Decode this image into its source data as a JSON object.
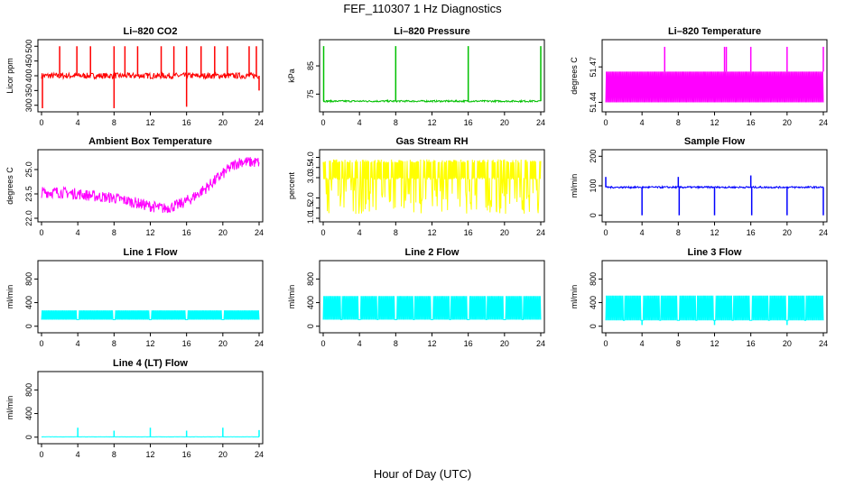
{
  "page": {
    "title": "FEF_110307  1 Hz Diagnostics",
    "xlabel": "Hour of Day (UTC)"
  },
  "chart_data": [
    {
      "type": "line",
      "title": "Li–820 CO2",
      "ylabel": "Licor ppm",
      "xlim": [
        0,
        24
      ],
      "ylim": [
        290,
        510
      ],
      "xticks": [
        "0",
        "4",
        "8",
        "12",
        "16",
        "20",
        "24"
      ],
      "yticks": [
        "300",
        "350",
        "400",
        "450",
        "500"
      ],
      "color": "#ff0000",
      "baseline": 400,
      "noise": 10,
      "style": "spiky",
      "spikes_up": [
        [
          2,
          500
        ],
        [
          3.9,
          500
        ],
        [
          5.4,
          500
        ],
        [
          8,
          500
        ],
        [
          9.2,
          500
        ],
        [
          10.6,
          500
        ],
        [
          13.2,
          500
        ],
        [
          14.6,
          500
        ],
        [
          16,
          500
        ],
        [
          17.6,
          500
        ],
        [
          19.1,
          500
        ],
        [
          20.5,
          500
        ],
        [
          22.9,
          500
        ],
        [
          23.7,
          500
        ]
      ],
      "spikes_down": [
        [
          0.1,
          290
        ],
        [
          8,
          290
        ],
        [
          16,
          295
        ],
        [
          24,
          350
        ]
      ]
    },
    {
      "type": "line",
      "title": "Li–820 Pressure",
      "ylabel": "kPa",
      "xlim": [
        0,
        24
      ],
      "ylim": [
        70,
        93
      ],
      "xticks": [
        "0",
        "4",
        "8",
        "12",
        "16",
        "20",
        "24"
      ],
      "yticks": [
        "75",
        "85"
      ],
      "color": "#00c000",
      "baseline": 72.5,
      "noise": 0.3,
      "style": "flat",
      "spikes_up": [
        [
          0.05,
          92
        ],
        [
          8,
          92
        ],
        [
          16,
          92
        ],
        [
          24,
          92
        ]
      ],
      "spikes_down": []
    },
    {
      "type": "line",
      "title": "Li–820 Temperature",
      "ylabel": "degrees C",
      "xlim": [
        0,
        24
      ],
      "ylim": [
        51.435,
        51.49
      ],
      "xticks": [
        "0",
        "4",
        "8",
        "12",
        "16",
        "20",
        "24"
      ],
      "yticks": [
        "51.44",
        "51.47"
      ],
      "color": "#ff00ff",
      "band": [
        51.44,
        51.466
      ],
      "style": "band",
      "spikes_up": [
        [
          6.5,
          51.487
        ],
        [
          13.1,
          51.487
        ],
        [
          13.3,
          51.487
        ],
        [
          16,
          51.487
        ],
        [
          20,
          51.487
        ],
        [
          24,
          51.487
        ]
      ],
      "spikes_down": []
    },
    {
      "type": "line",
      "title": "Ambient Box Temperature",
      "ylabel": "degrees C",
      "xlim": [
        0,
        24
      ],
      "ylim": [
        22,
        26
      ],
      "xticks": [
        "0",
        "4",
        "8",
        "12",
        "16",
        "20",
        "24"
      ],
      "yticks": [
        "22.0",
        "23.5",
        "25.0"
      ],
      "color": "#ff00ff",
      "style": "curve",
      "noise": 0.35,
      "curve": [
        [
          0,
          23.6
        ],
        [
          2,
          23.6
        ],
        [
          4,
          23.5
        ],
        [
          6,
          23.35
        ],
        [
          8,
          23.25
        ],
        [
          10,
          23.0
        ],
        [
          12,
          22.75
        ],
        [
          13.5,
          22.6
        ],
        [
          15,
          22.8
        ],
        [
          16.5,
          23.2
        ],
        [
          18,
          23.8
        ],
        [
          19.5,
          24.5
        ],
        [
          21,
          25.2
        ],
        [
          22,
          25.5
        ],
        [
          23,
          25.45
        ],
        [
          24,
          25.45
        ]
      ],
      "spikes_up": [],
      "spikes_down": []
    },
    {
      "type": "line",
      "title": "Gas Stream RH",
      "ylabel": "percent",
      "xlim": [
        0,
        24
      ],
      "ylim": [
        1.0,
        4.2
      ],
      "xticks": [
        "0",
        "4",
        "8",
        "12",
        "16",
        "20",
        "24"
      ],
      "yticks": [
        "1.0",
        "1.5",
        "2.0",
        "3.0",
        "3.5",
        "4.0"
      ],
      "color": "#ffff00",
      "band": [
        2.9,
        3.9
      ],
      "low": 1.2,
      "style": "downspikes",
      "spikes_up": [],
      "spikes_down": []
    },
    {
      "type": "line",
      "title": "Sample Flow",
      "ylabel": "ml/min",
      "xlim": [
        0,
        24
      ],
      "ylim": [
        -10,
        210
      ],
      "xticks": [
        "0",
        "4",
        "8",
        "12",
        "16",
        "20",
        "24"
      ],
      "yticks": [
        "0",
        "100",
        "200"
      ],
      "color": "#0000ff",
      "baseline": 95,
      "noise": 3,
      "style": "flat",
      "spikes_up": [
        [
          0,
          130
        ],
        [
          8,
          130
        ],
        [
          16,
          135
        ]
      ],
      "spikes_down": [
        [
          4,
          0
        ],
        [
          8.1,
          0
        ],
        [
          12,
          0
        ],
        [
          16.1,
          0
        ],
        [
          20,
          0
        ],
        [
          24,
          0
        ]
      ]
    },
    {
      "type": "line",
      "title": "Line 1 Flow",
      "ylabel": "ml/min",
      "xlim": [
        0,
        24
      ],
      "ylim": [
        -50,
        1050
      ],
      "xticks": [
        "0",
        "4",
        "8",
        "12",
        "16",
        "20",
        "24"
      ],
      "yticks": [
        "0",
        "400",
        "800"
      ],
      "color": "#00ffff",
      "band": [
        110,
        270
      ],
      "style": "band",
      "gaps": [
        4,
        8,
        12,
        16,
        20
      ],
      "spikes_up": [],
      "spikes_down": []
    },
    {
      "type": "line",
      "title": "Line 2 Flow",
      "ylabel": "ml/min",
      "xlim": [
        0,
        24
      ],
      "ylim": [
        -50,
        1050
      ],
      "xticks": [
        "0",
        "4",
        "8",
        "12",
        "16",
        "20",
        "24"
      ],
      "yticks": [
        "0",
        "400",
        "800"
      ],
      "color": "#00ffff",
      "band": [
        110,
        510
      ],
      "style": "band",
      "gaps": [
        2,
        4,
        6,
        8,
        10,
        12,
        14,
        16,
        18,
        20,
        22
      ],
      "spikes_up": [],
      "spikes_down": []
    },
    {
      "type": "line",
      "title": "Line 3 Flow",
      "ylabel": "ml/min",
      "xlim": [
        0,
        24
      ],
      "ylim": [
        -50,
        1050
      ],
      "xticks": [
        "0",
        "4",
        "8",
        "12",
        "16",
        "20",
        "24"
      ],
      "yticks": [
        "0",
        "400",
        "800"
      ],
      "color": "#00ffff",
      "band": [
        100,
        520
      ],
      "style": "band",
      "gaps": [
        2,
        4,
        6,
        8,
        10,
        12,
        14,
        16,
        18,
        20,
        22
      ],
      "spikes_up": [],
      "spikes_down": [
        [
          4,
          20
        ],
        [
          12,
          20
        ],
        [
          20,
          20
        ]
      ]
    },
    {
      "type": "line",
      "title": "Line 4 (LT) Flow",
      "ylabel": "ml/min",
      "xlim": [
        0,
        24
      ],
      "ylim": [
        -50,
        1050
      ],
      "xticks": [
        "0",
        "4",
        "8",
        "12",
        "16",
        "20",
        "24"
      ],
      "yticks": [
        "0",
        "400",
        "800"
      ],
      "color": "#00ffff",
      "baseline": 5,
      "noise": 2,
      "style": "flat",
      "spikes_up": [
        [
          4,
          160
        ],
        [
          8,
          110
        ],
        [
          12,
          160
        ],
        [
          16,
          110
        ],
        [
          20,
          160
        ],
        [
          24,
          120
        ]
      ],
      "spikes_down": []
    }
  ]
}
